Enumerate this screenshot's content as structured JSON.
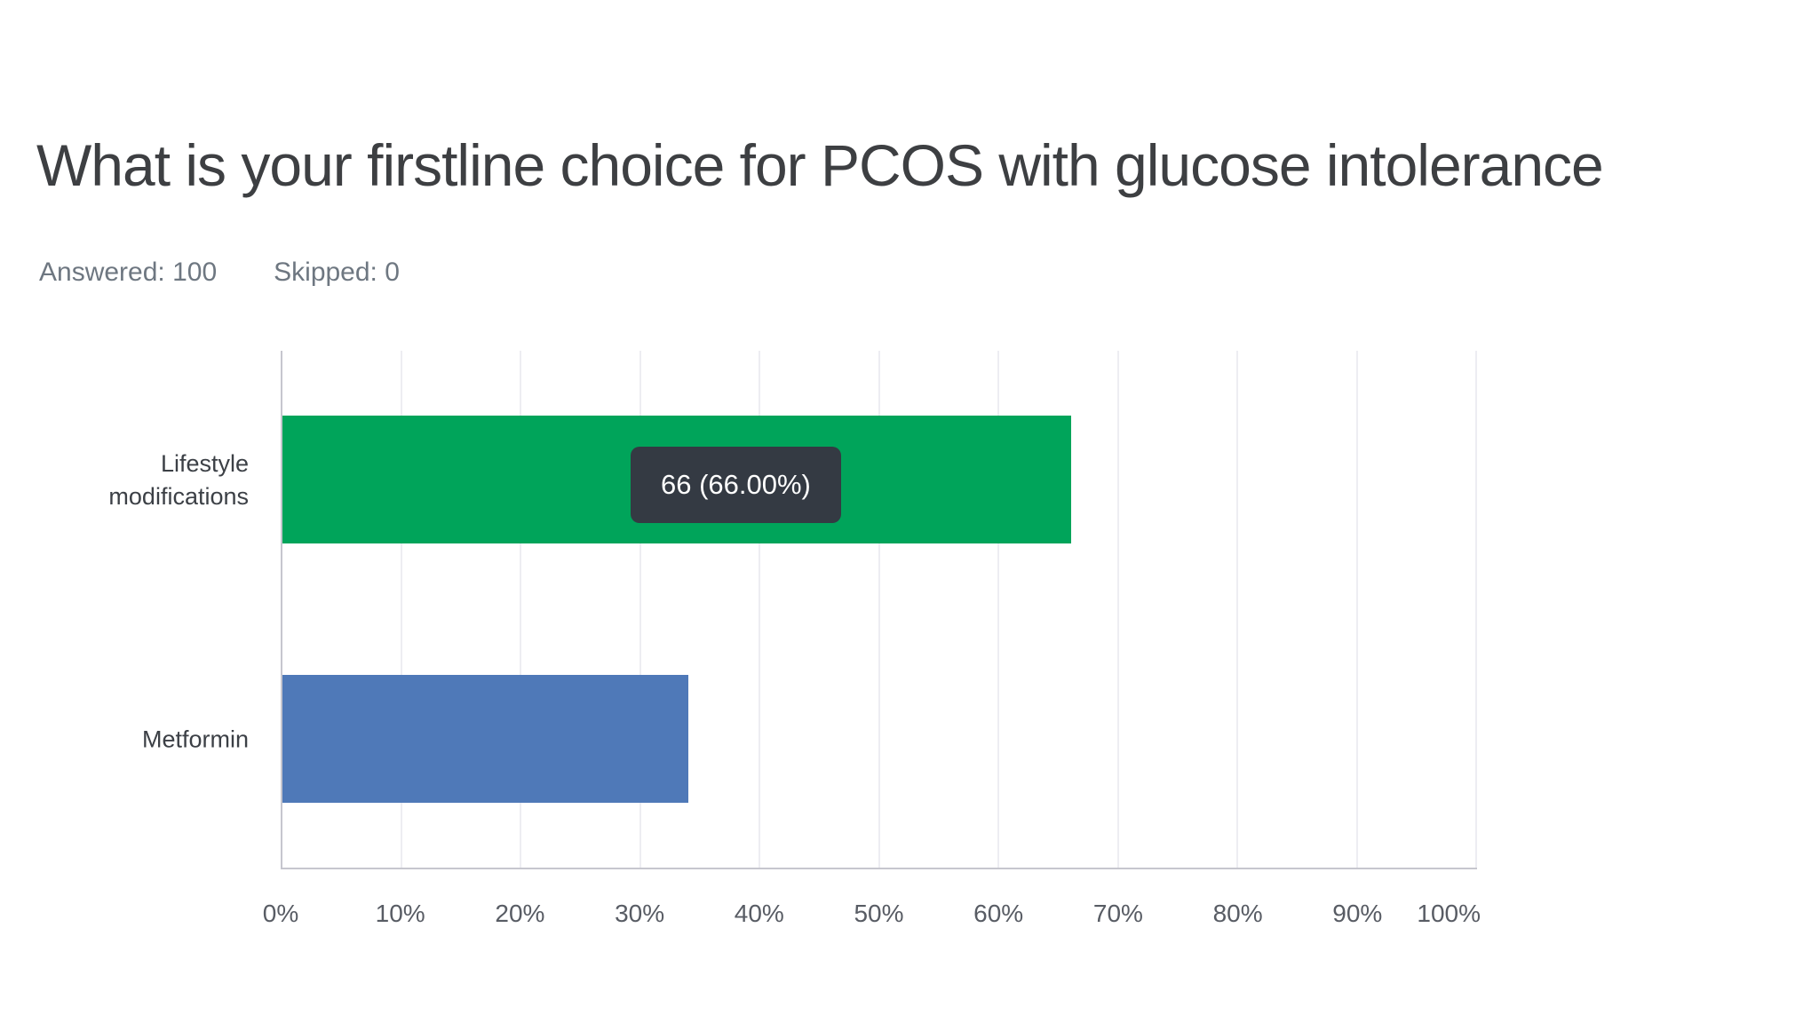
{
  "header": {
    "title": "What is your firstline choice for PCOS with glucose intolerance",
    "answered": "Answered: 100",
    "skipped": "Skipped: 0"
  },
  "chart_data": {
    "type": "bar",
    "orientation": "horizontal",
    "title": "What is your firstline choice for PCOS with glucose intolerance",
    "categories": [
      "Lifestyle modifications",
      "Metformin"
    ],
    "values": [
      66,
      34
    ],
    "bar_colors": [
      "#00a45a",
      "#4f79b8"
    ],
    "tooltip": {
      "category": "Lifestyle modifications",
      "text": "66 (66.00%)",
      "bg": "#343a43"
    },
    "x_ticks": [
      "0%",
      "10%",
      "20%",
      "30%",
      "40%",
      "50%",
      "60%",
      "70%",
      "80%",
      "90%",
      "100%"
    ],
    "xlim": [
      0,
      100
    ],
    "grid": true,
    "legend": false,
    "answered": 100,
    "skipped": 0
  }
}
